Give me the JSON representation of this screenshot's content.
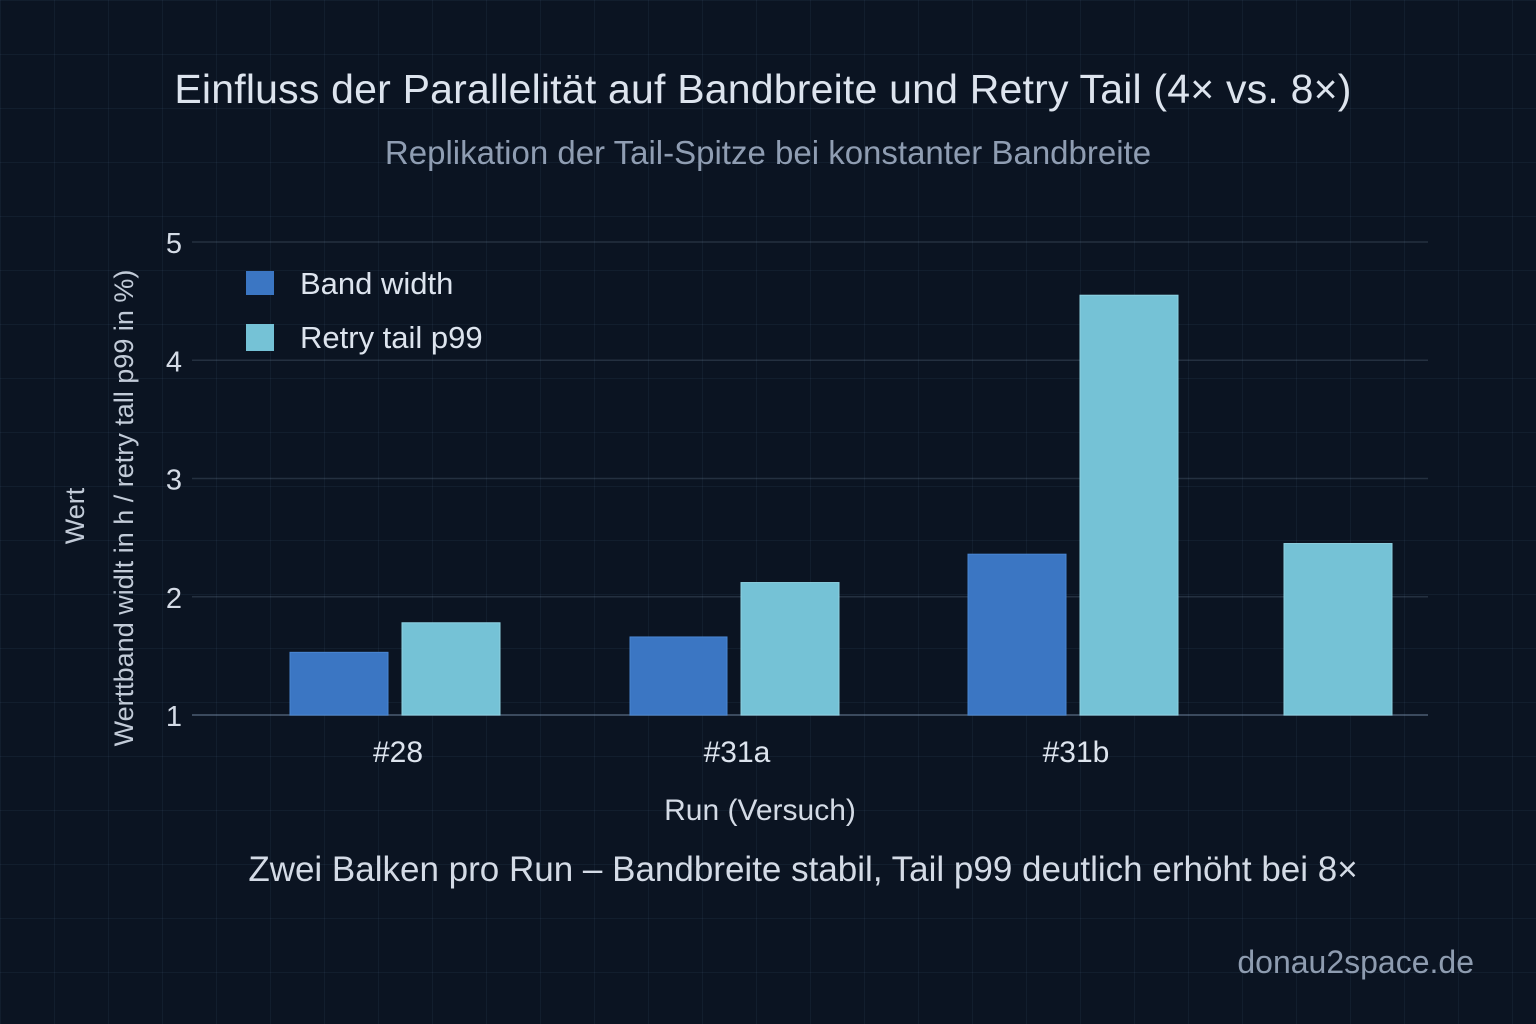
{
  "title": "Einfluss der Parallelität auf Bandbreite und Retry Tail (4× vs. 8×)",
  "subtitle": "Replikation der Tail-Spitze bei konstanter Bandbreite",
  "caption": "Zwei Balken pro Run – Bandbreite stabil, Tail p99 deutlich erhöht bei 8×",
  "watermark": "donau2space.de",
  "colors": {
    "background": "#0b1422",
    "bandwidth": "#3b76c3",
    "retry_tail": "#75c2d6",
    "text": "#dde4ee",
    "muted_text": "#8f9db2"
  },
  "chart_data": {
    "type": "bar",
    "title": "Einfluss der Parallelität auf Bandbreite und Retry Tail (4× vs. 8×)",
    "subtitle": "Replikation der Tail-Spitze bei konstanter Bandbreite",
    "xlabel": "Run (Versuch)",
    "ylabel_outer": "Wert",
    "ylabel_inner": "Werttband widlt in h / retry tall p99 in %)",
    "categories": [
      "#28",
      "#31a",
      "#31b",
      ""
    ],
    "series": [
      {
        "name": "Band width",
        "color": "#3b76c3",
        "values": [
          1.53,
          1.66,
          2.36,
          null
        ]
      },
      {
        "name": "Retry tail p99",
        "color": "#75c2d6",
        "values": [
          1.78,
          2.12,
          4.55,
          2.45
        ]
      }
    ],
    "ylim": [
      1,
      5
    ],
    "yticks": [
      1,
      2,
      3,
      4,
      5
    ],
    "grid": true,
    "legend": "top-left"
  }
}
